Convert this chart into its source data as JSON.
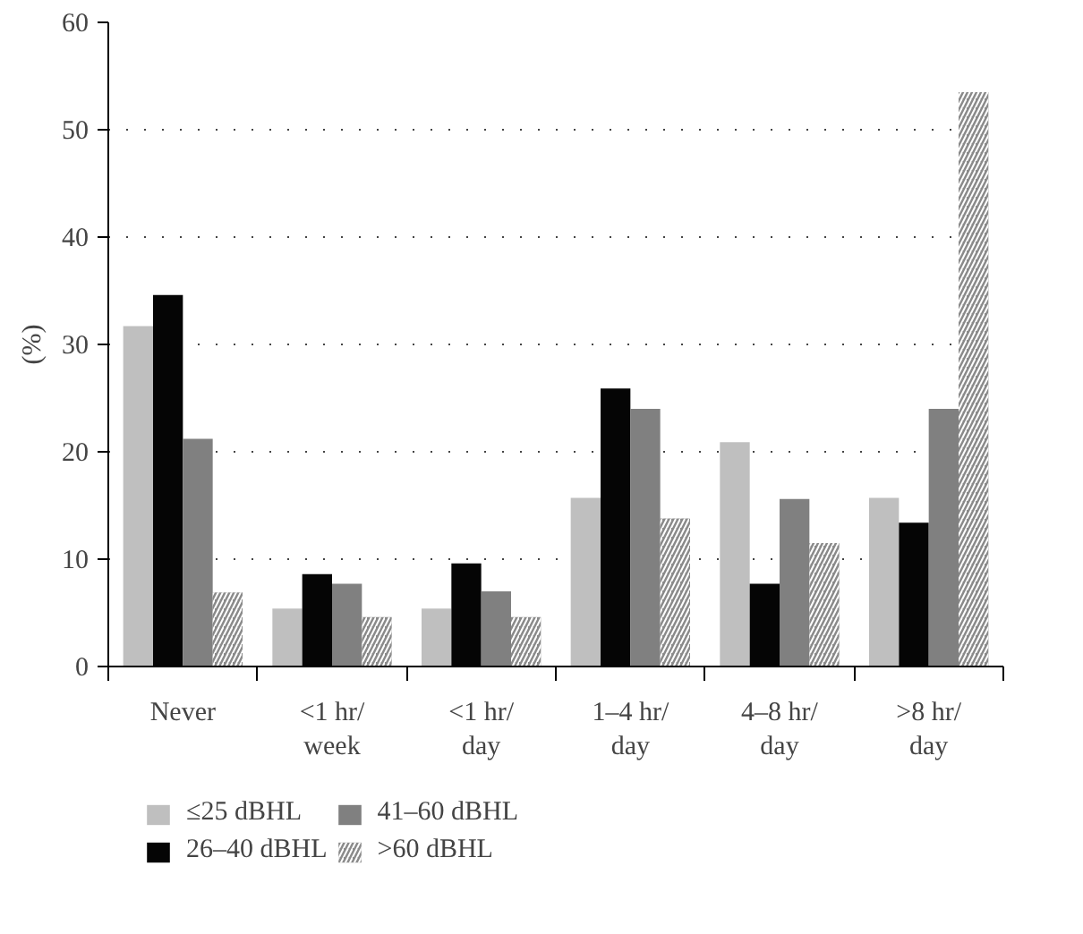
{
  "chart_data": {
    "type": "bar",
    "ylabel": "(%)",
    "categories": [
      "Never",
      "<1 hr/\nweek",
      "<1 hr/\nday",
      "1–4 hr/\nday",
      "4–8 hr/\nday",
      ">8 hr/\nday"
    ],
    "series": [
      {
        "name": "≤25 dBHL",
        "color": "#bfbfbf",
        "values": [
          31.7,
          5.4,
          5.4,
          15.7,
          20.9,
          15.7
        ]
      },
      {
        "name": "26–40 dBHL",
        "color": "#050505",
        "values": [
          34.6,
          8.6,
          9.6,
          25.9,
          7.7,
          13.4
        ]
      },
      {
        "name": "41–60 dBHL",
        "color": "#808080",
        "values": [
          21.2,
          7.7,
          7.0,
          24.0,
          15.6,
          24.0
        ]
      },
      {
        "name": ">60 dBHL",
        "color": "#8a8a8a",
        "values": [
          6.9,
          4.6,
          4.6,
          13.8,
          11.5,
          53.5
        ]
      }
    ],
    "ylim": [
      0,
      60
    ],
    "yticks": [
      0,
      10,
      20,
      30,
      40,
      50,
      60
    ],
    "grid": "y",
    "legend": "bottom"
  }
}
